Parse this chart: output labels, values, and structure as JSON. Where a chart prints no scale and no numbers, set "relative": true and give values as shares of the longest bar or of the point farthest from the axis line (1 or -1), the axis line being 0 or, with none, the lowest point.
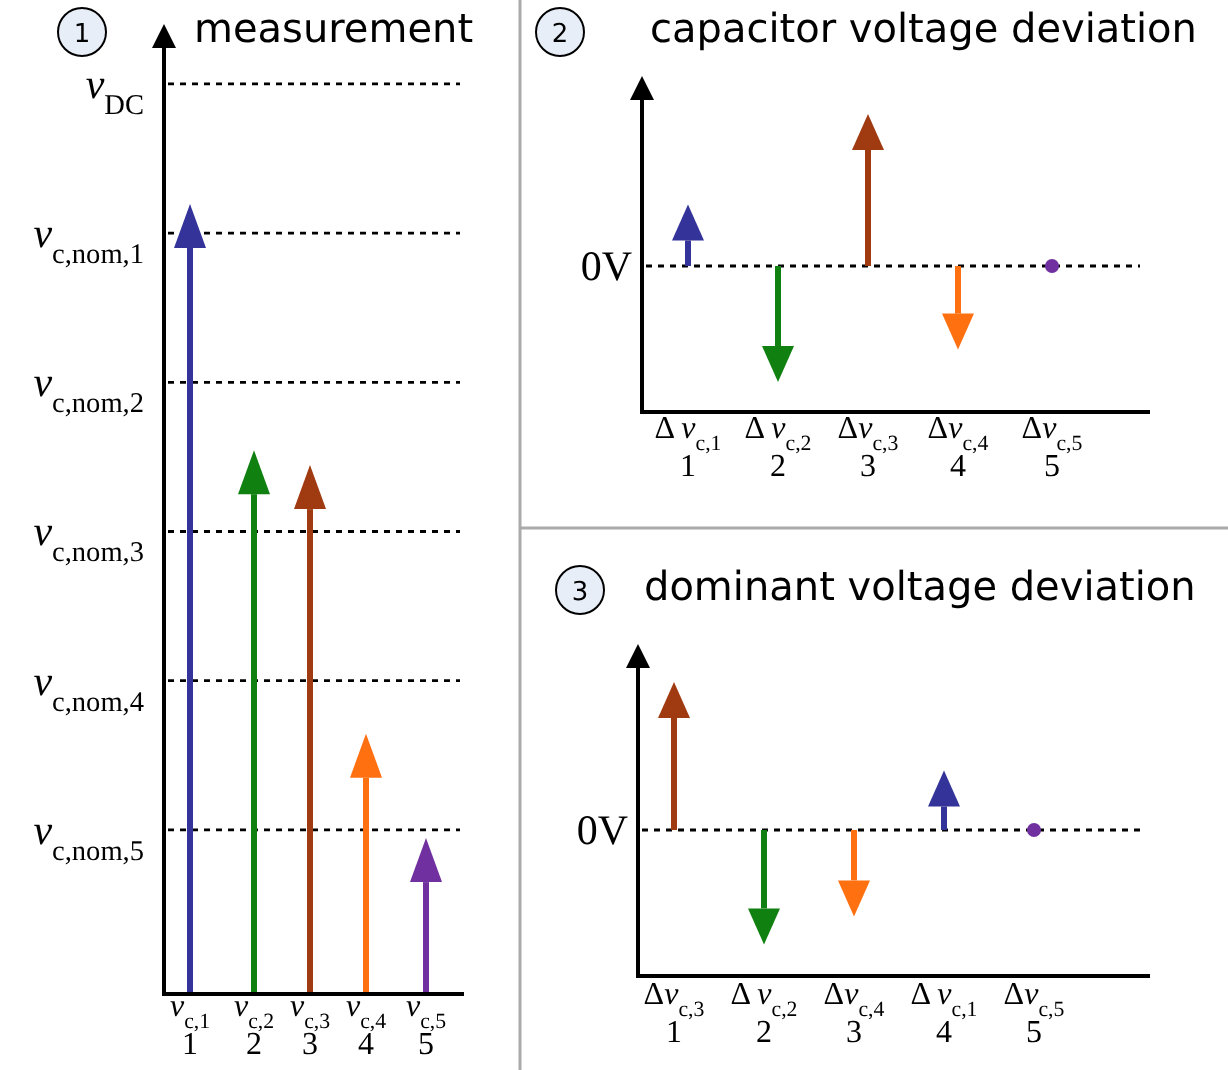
{
  "chart_data": [
    {
      "type": "bar",
      "title": "measurement",
      "annotations": [
        "1"
      ],
      "relative": true,
      "categories": [
        "v$_{c,1}$\n1",
        "v$_{c,2}$\n2",
        "v$_{c,3}$\n3",
        "v$_{c,4}$\n4",
        "v$_{c,5}$\n5"
      ],
      "values": [
        1,
        0.67,
        0.65,
        0.29,
        0.15
      ],
      "colors": [
        "#33339a",
        "#108010",
        "#a03a10",
        "#ff7010",
        "#7030a0"
      ],
      "ref_lines": [
        {
          "axis": "y",
          "value": 1.22,
          "label": "v$_{DC}$",
          "line_style": "dashed",
          "color": "#000000"
        },
        {
          "axis": "y",
          "value": 1.02,
          "label": "v$_{c,nom,1}$",
          "line_style": "dashed",
          "color": "#000000"
        },
        {
          "axis": "y",
          "value": 0.82,
          "label": "v$_{c,nom,2}$",
          "line_style": "dashed",
          "color": "#000000"
        },
        {
          "axis": "y",
          "value": 0.62,
          "label": "v$_{c,nom,3}$",
          "line_style": "dashed",
          "color": "#000000"
        },
        {
          "axis": "y",
          "value": 0.42,
          "label": "v$_{c,nom,4}$",
          "line_style": "dashed",
          "color": "#000000"
        },
        {
          "axis": "y",
          "value": 0.22,
          "label": "v$_{c,nom,5}$",
          "line_style": "dashed",
          "color": "#000000"
        }
      ]
    },
    {
      "type": "bar",
      "title": "capacitor voltage deviation",
      "annotations": [
        "2"
      ],
      "relative": true,
      "categories": [
        "Δ v$_{c,1}$\n1",
        "Δ v$_{c,2}$\n2",
        "Δv$_{c,3}$\n3",
        "Δv$_{c,4}$\n4",
        "Δv$_{c,5}$\n5"
      ],
      "values": [
        0.22,
        -0.69,
        1,
        -0.41,
        0
      ],
      "colors": [
        "#33339a",
        "#108010",
        "#a03a10",
        "#ff7010",
        "#7030a0"
      ],
      "ref_lines": [
        {
          "axis": "y",
          "value": 0,
          "label": "0V",
          "line_style": "dashed",
          "color": "#000000"
        }
      ]
    },
    {
      "type": "bar",
      "title": "dominant voltage deviation",
      "annotations": [
        "3"
      ],
      "relative": true,
      "categories": [
        "Δv$_{c,3}$\n1",
        "Δ v$_{c,2}$\n2",
        "Δv$_{c,4}$\n3",
        "Δ v$_{c,1}$\n4",
        "Δv$_{c,5}$\n5"
      ],
      "values": [
        1,
        -0.7,
        -0.45,
        0.21,
        0
      ],
      "colors": [
        "#a03a10",
        "#108010",
        "#ff7010",
        "#33339a",
        "#7030a0"
      ],
      "ref_lines": [
        {
          "axis": "y",
          "value": 0,
          "label": "0V",
          "line_style": "dashed",
          "color": "#000000"
        }
      ]
    }
  ]
}
